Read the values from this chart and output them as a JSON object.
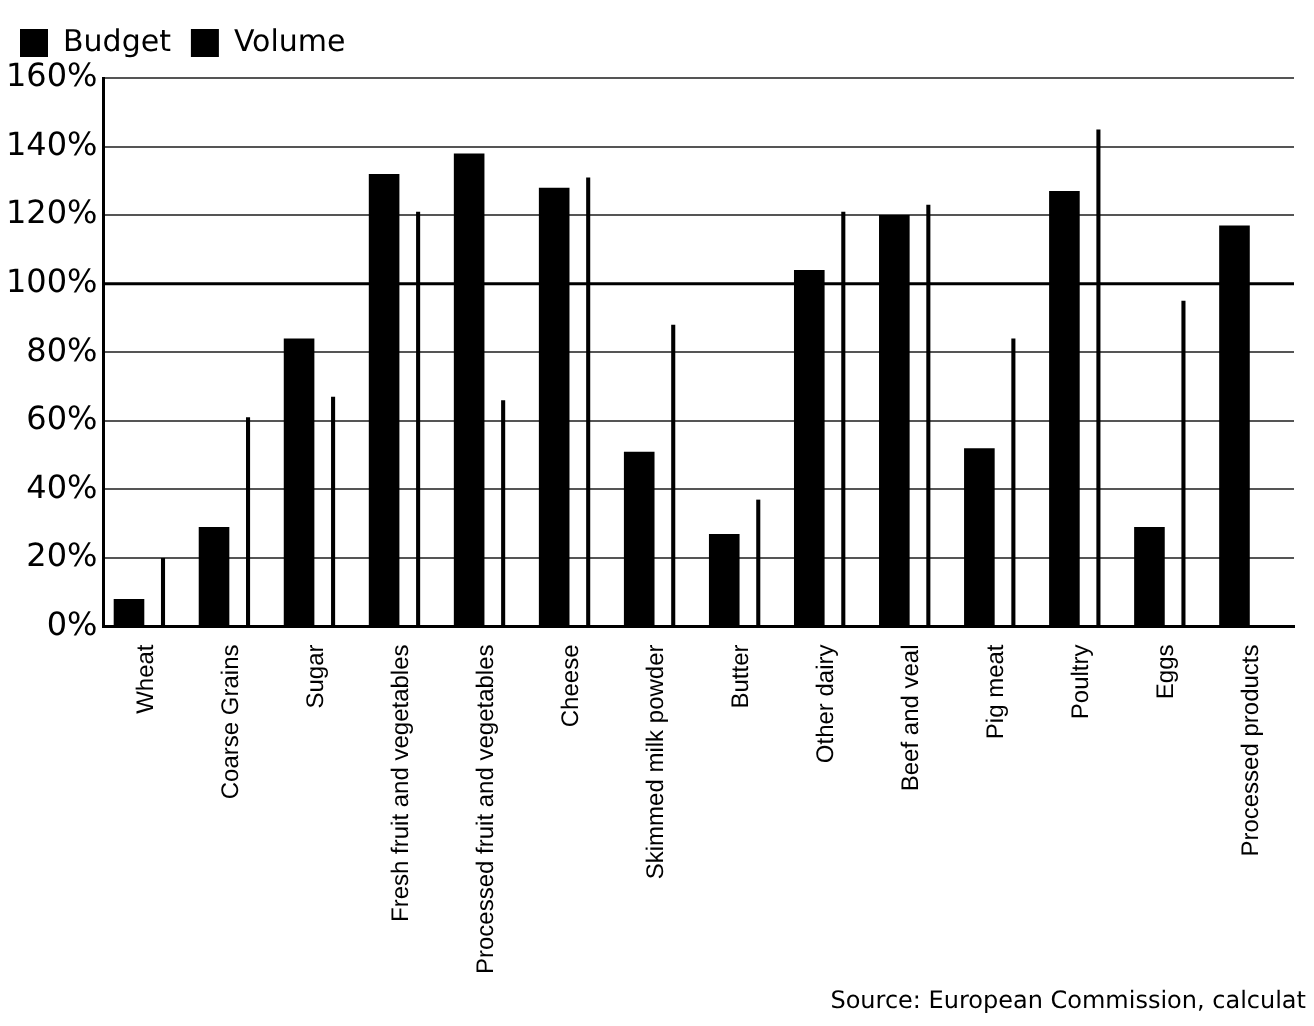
{
  "chart_data": {
    "type": "bar",
    "categories": [
      "Wheat",
      "Coarse Grains",
      "Sugar",
      "Fresh fruit and vegetables",
      "Processed fruit and vegetables",
      "Cheese",
      "Skimmed milk powder",
      "Butter",
      "Other dairy",
      "Beef and veal",
      "Pig meat",
      "Poultry",
      "Eggs",
      "Processed products"
    ],
    "series": [
      {
        "name": "Budget",
        "color": "#000000",
        "values": [
          8,
          29,
          84,
          132,
          138,
          128,
          51,
          27,
          104,
          120,
          52,
          127,
          29,
          117
        ]
      },
      {
        "name": "Volume",
        "color": "#000000",
        "values": [
          20,
          61,
          67,
          121,
          66,
          131,
          88,
          37,
          121,
          123,
          84,
          145,
          95,
          null
        ]
      }
    ],
    "ylim": [
      0,
      160
    ],
    "yticks": [
      {
        "value": 0,
        "label": "0%"
      },
      {
        "value": 20,
        "label": "20%"
      },
      {
        "value": 40,
        "label": "40%"
      },
      {
        "value": 60,
        "label": "60%"
      },
      {
        "value": 80,
        "label": "80%"
      },
      {
        "value": 100,
        "label": "100%"
      },
      {
        "value": 120,
        "label": "120%"
      },
      {
        "value": 140,
        "label": "140%"
      },
      {
        "value": 160,
        "label": "160%"
      }
    ],
    "ref_lines": [
      {
        "axis": "y",
        "value": 100,
        "color": "#000000"
      }
    ],
    "grid": "y",
    "legend": "top left",
    "annotations": [
      "Source: European Commission, calculat"
    ]
  }
}
